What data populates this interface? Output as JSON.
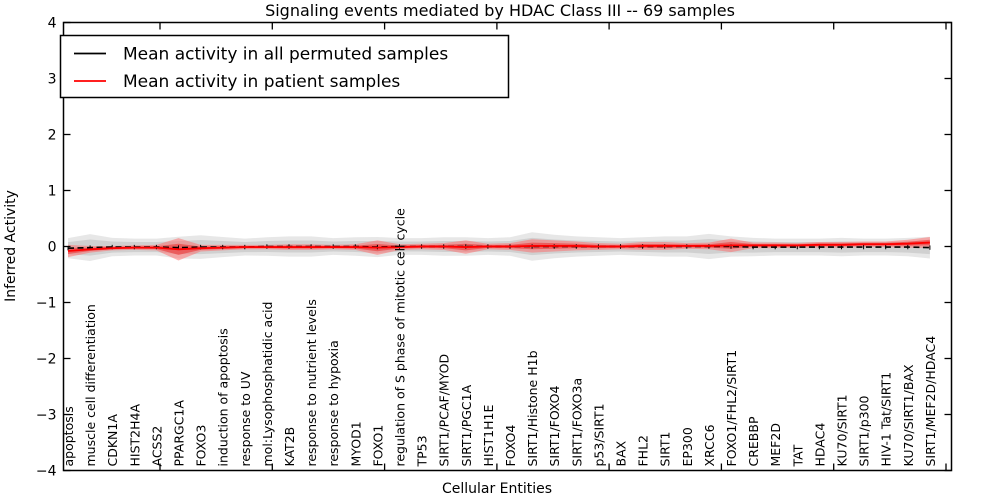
{
  "title": "Signaling events mediated by HDAC Class III -- 69 samples",
  "axes": {
    "xlabel": "Cellular Entities",
    "ylabel": "Inferred Activity"
  },
  "legend": {
    "permuted_label": "Mean activity in all permuted samples",
    "patient_label": "Mean activity in patient samples"
  },
  "colors": {
    "permuted_line": "#000000",
    "patient_line": "#ff0000",
    "permuted_band_outer": "#d4d4d4",
    "permuted_band_inner": "#bdbdbd",
    "patient_band_outer": "#ff6666",
    "patient_band_inner": "#ee1111",
    "axis": "#000000",
    "background": "#ffffff"
  },
  "chart_data": {
    "type": "line",
    "title": "Signaling events mediated by HDAC Class III -- 69 samples",
    "xlabel": "Cellular Entities",
    "ylabel": "Inferred Activity",
    "ylim": [
      -4,
      4
    ],
    "yticks": [
      -4,
      -3,
      -2,
      -1,
      0,
      1,
      2,
      3,
      4
    ],
    "grid": false,
    "legend_position": "upper left",
    "categories": [
      "apoptosis",
      "muscle cell differentiation",
      "CDKN1A",
      "HIST2H4A",
      "ACSS2",
      "PPARGC1A",
      "FOXO3",
      "induction of apoptosis",
      "response to UV",
      "mol:Lysophosphatidic acid",
      "KAT2B",
      "response to nutrient levels",
      "response to hypoxia",
      "MYOD1",
      "FOXO1",
      "regulation of S phase of mitotic cell cycle",
      "TP53",
      "SIRT1/PCAF/MYOD",
      "SIRT1/PGC1A",
      "HIST1H1E",
      "FOXO4",
      "SIRT1/Histone H1b",
      "SIRT1/FOXO4",
      "SIRT1/FOXO3a",
      "p53/SIRT1",
      "BAX",
      "FHL2",
      "SIRT1",
      "EP300",
      "XRCC6",
      "FOXO1/FHL2/SIRT1",
      "CREBBP",
      "MEF2D",
      "TAT",
      "HDAC4",
      "KU70/SIRT1",
      "SIRT1/p300",
      "HIV-1 Tat/SIRT1",
      "KU70/SIRT1/BAX",
      "SIRT1/MEF2D/HDAC4"
    ],
    "series": [
      {
        "name": "Mean activity in all permuted samples",
        "color": "#000000",
        "style": "dashed",
        "values": [
          -0.03,
          -0.02,
          -0.01,
          -0.01,
          -0.01,
          -0.02,
          -0.01,
          -0.01,
          -0.01,
          0.0,
          0.0,
          0.0,
          0.0,
          0.0,
          -0.01,
          0.0,
          0.0,
          0.0,
          0.0,
          0.0,
          0.0,
          0.0,
          0.0,
          0.0,
          0.0,
          0.0,
          0.0,
          0.0,
          0.0,
          0.0,
          0.0,
          -0.01,
          -0.01,
          -0.01,
          -0.01,
          -0.01,
          -0.01,
          -0.01,
          -0.01,
          -0.02
        ],
        "band_halfwidth": [
          0.12,
          0.16,
          0.11,
          0.1,
          0.1,
          0.13,
          0.14,
          0.12,
          0.1,
          0.11,
          0.12,
          0.12,
          0.1,
          0.11,
          0.12,
          0.1,
          0.1,
          0.11,
          0.11,
          0.1,
          0.11,
          0.17,
          0.14,
          0.12,
          0.11,
          0.1,
          0.11,
          0.12,
          0.12,
          0.15,
          0.12,
          0.11,
          0.1,
          0.1,
          0.1,
          0.11,
          0.1,
          0.1,
          0.11,
          0.13
        ]
      },
      {
        "name": "Mean activity in patient samples",
        "color": "#ff0000",
        "style": "solid",
        "values": [
          -0.08,
          -0.05,
          -0.03,
          -0.02,
          -0.02,
          -0.05,
          -0.03,
          -0.02,
          -0.01,
          -0.01,
          -0.01,
          -0.01,
          -0.01,
          -0.01,
          -0.02,
          -0.01,
          0.0,
          0.0,
          -0.01,
          0.0,
          0.0,
          0.01,
          0.01,
          0.01,
          0.0,
          0.0,
          0.01,
          0.01,
          0.01,
          0.01,
          0.02,
          0.02,
          0.02,
          0.02,
          0.03,
          0.03,
          0.04,
          0.04,
          0.05,
          0.07
        ],
        "band_halfwidth": [
          0.11,
          0.06,
          0.04,
          0.04,
          0.05,
          0.2,
          0.06,
          0.05,
          0.04,
          0.04,
          0.05,
          0.05,
          0.04,
          0.05,
          0.13,
          0.05,
          0.05,
          0.06,
          0.12,
          0.05,
          0.06,
          0.12,
          0.1,
          0.08,
          0.06,
          0.05,
          0.07,
          0.07,
          0.05,
          0.06,
          0.12,
          0.05,
          0.05,
          0.04,
          0.05,
          0.05,
          0.05,
          0.05,
          0.07,
          0.1
        ]
      }
    ]
  }
}
